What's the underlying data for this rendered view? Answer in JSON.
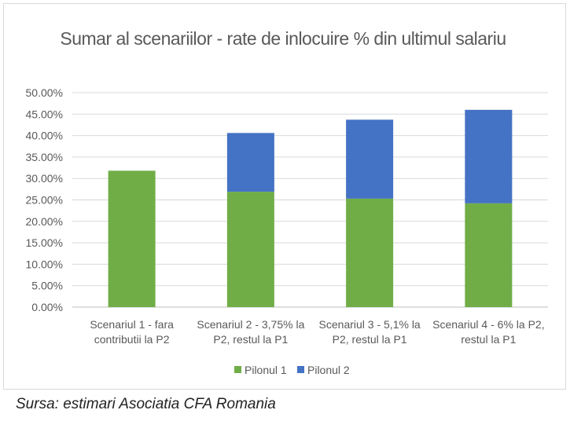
{
  "chart_data": {
    "type": "bar",
    "stacked": true,
    "title": "Sumar al scenariilor - rate de inlocuire % din ultimul salariu",
    "categories": [
      [
        "Scenariul 1 - fara",
        "contributii la P2"
      ],
      [
        "Scenariul 2 - 3,75% la",
        "P2, restul la P1"
      ],
      [
        "Scenariul 3 - 5,1% la",
        "P2, restul la P1"
      ],
      [
        "Scenariul 4 - 6% la P2,",
        "restul la P1"
      ]
    ],
    "series": [
      {
        "name": "Pilonul 1",
        "color": "#70AD47",
        "values": [
          31.8,
          26.9,
          25.3,
          24.2
        ]
      },
      {
        "name": "Pilonul 2",
        "color": "#4472C4",
        "values": [
          0,
          13.7,
          18.4,
          21.8
        ]
      }
    ],
    "ylim": [
      0,
      50
    ],
    "yticks": [
      "0.00%",
      "5.00%",
      "10.00%",
      "15.00%",
      "20.00%",
      "25.00%",
      "30.00%",
      "35.00%",
      "40.00%",
      "45.00%",
      "50.00%"
    ],
    "grid": true,
    "legend": "bottom"
  },
  "source": "Sursa: estimari Asociatia CFA Romania"
}
